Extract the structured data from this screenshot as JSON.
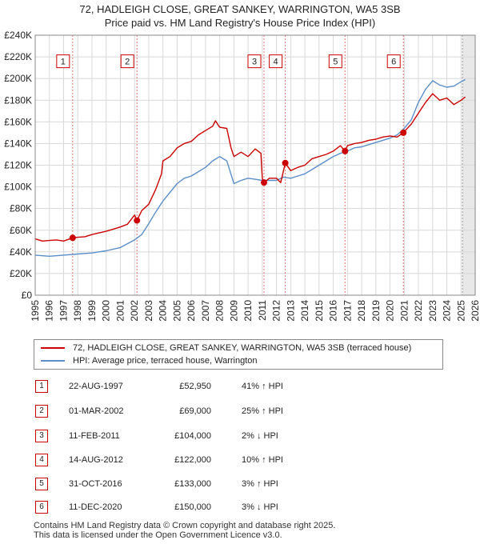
{
  "title_line1": "72, HADLEIGH CLOSE, GREAT SANKEY, WARRINGTON, WA5 3SB",
  "title_line2": "Price paid vs. HM Land Registry's House Price Index (HPI)",
  "chart_data": {
    "type": "line",
    "title": "72, HADLEIGH CLOSE, GREAT SANKEY, WARRINGTON, WA5 3SB — Price paid vs. HM Land Registry's House Price Index (HPI)",
    "xlabel": "",
    "ylabel": "",
    "xlim": [
      1995,
      2026
    ],
    "ylim": [
      0,
      240000
    ],
    "x_ticks": [
      "1995",
      "1996",
      "1997",
      "1998",
      "1999",
      "2000",
      "2001",
      "2002",
      "2003",
      "2004",
      "2005",
      "2006",
      "2007",
      "2008",
      "2009",
      "2010",
      "2011",
      "2012",
      "2013",
      "2014",
      "2015",
      "2016",
      "2017",
      "2018",
      "2019",
      "2020",
      "2021",
      "2022",
      "2023",
      "2024",
      "2025",
      "2026"
    ],
    "y_ticks": [
      {
        "value": 0,
        "label": "£0"
      },
      {
        "value": 20000,
        "label": "£20K"
      },
      {
        "value": 40000,
        "label": "£40K"
      },
      {
        "value": 60000,
        "label": "£60K"
      },
      {
        "value": 80000,
        "label": "£80K"
      },
      {
        "value": 100000,
        "label": "£100K"
      },
      {
        "value": 120000,
        "label": "£120K"
      },
      {
        "value": 140000,
        "label": "£140K"
      },
      {
        "value": 160000,
        "label": "£160K"
      },
      {
        "value": 180000,
        "label": "£180K"
      },
      {
        "value": 200000,
        "label": "£200K"
      },
      {
        "value": 220000,
        "label": "£220K"
      },
      {
        "value": 240000,
        "label": "£240K"
      }
    ],
    "grid": true,
    "projection_start": 2025.1,
    "series": [
      {
        "name": "72, HADLEIGH CLOSE, GREAT SANKEY, WARRINGTON, WA5 3SB (terraced house)",
        "color": "#cc0000",
        "x": [
          1995.0,
          1995.5,
          1996.0,
          1996.5,
          1997.0,
          1997.64,
          1998.0,
          1998.5,
          1999.0,
          1999.5,
          2000.0,
          2000.5,
          2001.0,
          2001.5,
          2002.0,
          2002.17,
          2002.5,
          2003.0,
          2003.5,
          2003.9,
          2004.0,
          2004.5,
          2005.0,
          2005.5,
          2006.0,
          2006.5,
          2007.0,
          2007.5,
          2007.7,
          2008.0,
          2008.5,
          2008.8,
          2009.0,
          2009.5,
          2010.0,
          2010.5,
          2010.9,
          2011.0,
          2011.12,
          2011.5,
          2012.0,
          2012.3,
          2012.62,
          2013.0,
          2013.5,
          2014.0,
          2014.5,
          2015.0,
          2015.5,
          2016.0,
          2016.5,
          2016.83,
          2017.0,
          2017.5,
          2018.0,
          2018.5,
          2019.0,
          2019.5,
          2020.0,
          2020.5,
          2020.94,
          2021.0,
          2021.5,
          2022.0,
          2022.5,
          2023.0,
          2023.5,
          2024.0,
          2024.5,
          2025.0,
          2025.3
        ],
        "values": [
          52000,
          50000,
          50500,
          51000,
          50000,
          52950,
          53500,
          54000,
          56000,
          57500,
          59000,
          61000,
          63000,
          65500,
          74000,
          69000,
          78000,
          84000,
          98000,
          112000,
          124000,
          128000,
          136000,
          140000,
          142000,
          148000,
          152000,
          156000,
          161000,
          155000,
          154000,
          136000,
          128000,
          132000,
          128000,
          135000,
          131000,
          108000,
          104000,
          108000,
          108000,
          104000,
          122000,
          115000,
          118000,
          120000,
          126000,
          128000,
          130000,
          133000,
          138000,
          133000,
          138000,
          140000,
          141000,
          143000,
          144000,
          146000,
          147000,
          146000,
          150000,
          151000,
          158000,
          168000,
          178000,
          186000,
          180000,
          182000,
          176000,
          180000,
          183000
        ]
      },
      {
        "name": "HPI: Average price, terraced house, Warrington",
        "color": "#5b8ec9",
        "x": [
          1995.0,
          1996.0,
          1997.0,
          1998.0,
          1999.0,
          2000.0,
          2001.0,
          2002.0,
          2002.5,
          2003.0,
          2003.5,
          2004.0,
          2004.5,
          2005.0,
          2005.5,
          2006.0,
          2006.5,
          2007.0,
          2007.5,
          2008.0,
          2008.5,
          2009.0,
          2009.5,
          2010.0,
          2010.5,
          2011.0,
          2011.5,
          2012.0,
          2012.5,
          2013.0,
          2013.5,
          2014.0,
          2014.5,
          2015.0,
          2015.5,
          2016.0,
          2016.5,
          2017.0,
          2017.5,
          2018.0,
          2018.5,
          2019.0,
          2019.5,
          2020.0,
          2020.5,
          2021.0,
          2021.5,
          2022.0,
          2022.5,
          2023.0,
          2023.5,
          2024.0,
          2024.5,
          2025.0,
          2025.3
        ],
        "values": [
          37000,
          36000,
          37000,
          38000,
          39000,
          41000,
          44000,
          51000,
          56000,
          66000,
          77000,
          87000,
          95000,
          103000,
          108000,
          110000,
          114000,
          118000,
          124000,
          128000,
          124000,
          103000,
          106000,
          108000,
          107000,
          106000,
          106000,
          106000,
          109000,
          108000,
          110000,
          112000,
          116000,
          120000,
          124000,
          128000,
          131000,
          133000,
          136000,
          137000,
          139000,
          141000,
          143000,
          145000,
          148000,
          154000,
          162000,
          178000,
          190000,
          198000,
          194000,
          192000,
          193000,
          197000,
          199000
        ]
      }
    ],
    "sales": [
      {
        "n": "1",
        "x": 1997.64,
        "value": 52950
      },
      {
        "n": "2",
        "x": 2002.17,
        "value": 69000
      },
      {
        "n": "3",
        "x": 2011.12,
        "value": 104000
      },
      {
        "n": "4",
        "x": 2012.62,
        "value": 122000
      },
      {
        "n": "5",
        "x": 2016.83,
        "value": 133000
      },
      {
        "n": "6",
        "x": 2020.94,
        "value": 150000
      }
    ],
    "marker_label_value": 210000
  },
  "legend": {
    "property": "72, HADLEIGH CLOSE, GREAT SANKEY, WARRINGTON, WA5 3SB (terraced house)",
    "hpi": "HPI: Average price, terraced house, Warrington",
    "property_color": "#cc0000",
    "hpi_color": "#5b8ec9"
  },
  "sales_table": [
    {
      "n": "1",
      "date": "22-AUG-1997",
      "price": "£52,950",
      "hpi": "41% ↑ HPI"
    },
    {
      "n": "2",
      "date": "01-MAR-2002",
      "price": "£69,000",
      "hpi": "25% ↑ HPI"
    },
    {
      "n": "3",
      "date": "11-FEB-2011",
      "price": "£104,000",
      "hpi": "2% ↓ HPI"
    },
    {
      "n": "4",
      "date": "14-AUG-2012",
      "price": "£122,000",
      "hpi": "10% ↑ HPI"
    },
    {
      "n": "5",
      "date": "31-OCT-2016",
      "price": "£133,000",
      "hpi": "3% ↑ HPI"
    },
    {
      "n": "6",
      "date": "11-DEC-2020",
      "price": "£150,000",
      "hpi": "3% ↓ HPI"
    }
  ],
  "footer": {
    "line1": "Contains HM Land Registry data © Crown copyright and database right 2025.",
    "line2": "This data is licensed under the Open Government Licence v3.0."
  }
}
